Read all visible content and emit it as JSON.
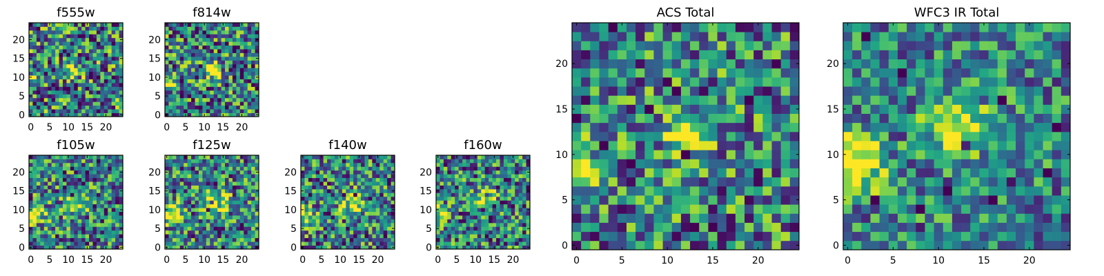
{
  "chart_data": [
    {
      "type": "heatmap",
      "id": "p_f555w",
      "title": "f555w",
      "grid": false,
      "xlim": [
        -0.5,
        24.5
      ],
      "ylim": [
        -0.5,
        24.5
      ],
      "xticks": [
        0,
        5,
        10,
        15,
        20
      ],
      "yticks": [
        0,
        5,
        10,
        15,
        20
      ],
      "x_tick_labels": [
        "0",
        "5",
        "10",
        "15",
        "20"
      ],
      "y_tick_labels": [
        "0",
        "5",
        "10",
        "15",
        "20"
      ],
      "colormap": "viridis",
      "pixels": 25,
      "seed": 11,
      "blobs": [
        {
          "cx": 12,
          "cy": 11,
          "sigma": 1.6,
          "amp": 0.55
        },
        {
          "cx": 0,
          "cy": 9,
          "sigma": 1.4,
          "amp": 0.35
        }
      ],
      "noise": 0.62
    },
    {
      "type": "heatmap",
      "id": "p_f814w",
      "title": "f814w",
      "grid": false,
      "xlim": [
        -0.5,
        24.5
      ],
      "ylim": [
        -0.5,
        24.5
      ],
      "xticks": [
        0,
        5,
        10,
        15,
        20
      ],
      "yticks": [
        0,
        5,
        10,
        15,
        20
      ],
      "x_tick_labels": [
        "0",
        "5",
        "10",
        "15",
        "20"
      ],
      "y_tick_labels": [
        "0",
        "5",
        "10",
        "15",
        "20"
      ],
      "colormap": "viridis",
      "pixels": 25,
      "seed": 23,
      "blobs": [
        {
          "cx": 12,
          "cy": 12,
          "sigma": 1.5,
          "amp": 0.65
        },
        {
          "cx": 0,
          "cy": 9,
          "sigma": 1.6,
          "amp": 0.6
        }
      ],
      "noise": 0.6
    },
    {
      "type": "heatmap",
      "id": "p_f105w",
      "title": "f105w",
      "grid": false,
      "xlim": [
        -0.5,
        24.5
      ],
      "ylim": [
        -0.5,
        24.5
      ],
      "xticks": [
        0,
        5,
        10,
        15,
        20
      ],
      "yticks": [
        0,
        5,
        10,
        15,
        20
      ],
      "x_tick_labels": [
        "0",
        "5",
        "10",
        "15",
        "20"
      ],
      "y_tick_labels": [
        "0",
        "5",
        "10",
        "15",
        "20"
      ],
      "colormap": "viridis",
      "pixels": 25,
      "seed": 37,
      "blobs": [
        {
          "cx": 12,
          "cy": 12,
          "sigma": 2.2,
          "amp": 0.4
        },
        {
          "cx": 1,
          "cy": 9,
          "sigma": 2.0,
          "amp": 0.55
        }
      ],
      "noise": 0.55
    },
    {
      "type": "heatmap",
      "id": "p_f125w",
      "title": "f125w",
      "grid": false,
      "xlim": [
        -0.5,
        24.5
      ],
      "ylim": [
        -0.5,
        24.5
      ],
      "xticks": [
        0,
        5,
        10,
        15,
        20
      ],
      "yticks": [
        0,
        5,
        10,
        15,
        20
      ],
      "x_tick_labels": [
        "0",
        "5",
        "10",
        "15",
        "20"
      ],
      "y_tick_labels": [
        "0",
        "5",
        "10",
        "15",
        "20"
      ],
      "colormap": "viridis",
      "pixels": 25,
      "seed": 41,
      "blobs": [
        {
          "cx": 13,
          "cy": 12,
          "sigma": 2.2,
          "amp": 0.45
        },
        {
          "cx": 1,
          "cy": 9,
          "sigma": 2.0,
          "amp": 0.55
        }
      ],
      "noise": 0.55
    },
    {
      "type": "heatmap",
      "id": "p_f140w",
      "title": "f140w",
      "grid": false,
      "xlim": [
        -0.5,
        24.5
      ],
      "ylim": [
        -0.5,
        24.5
      ],
      "xticks": [
        0,
        5,
        10,
        15,
        20
      ],
      "yticks": [
        0,
        5,
        10,
        15,
        20
      ],
      "x_tick_labels": [
        "0",
        "5",
        "10",
        "15",
        "20"
      ],
      "y_tick_labels": [
        "0",
        "5",
        "10",
        "15",
        "20"
      ],
      "colormap": "viridis",
      "pixels": 25,
      "seed": 53,
      "blobs": [
        {
          "cx": 13,
          "cy": 12,
          "sigma": 2.3,
          "amp": 0.45
        },
        {
          "cx": 1,
          "cy": 8,
          "sigma": 1.8,
          "amp": 0.5
        }
      ],
      "noise": 0.55
    },
    {
      "type": "heatmap",
      "id": "p_f160w",
      "title": "f160w",
      "grid": false,
      "xlim": [
        -0.5,
        24.5
      ],
      "ylim": [
        -0.5,
        24.5
      ],
      "xticks": [
        0,
        5,
        10,
        15,
        20
      ],
      "yticks": [
        0,
        5,
        10,
        15,
        20
      ],
      "x_tick_labels": [
        "0",
        "5",
        "10",
        "15",
        "20"
      ],
      "y_tick_labels": [
        "0",
        "5",
        "10",
        "15",
        "20"
      ],
      "colormap": "viridis",
      "pixels": 25,
      "seed": 67,
      "blobs": [
        {
          "cx": 13,
          "cy": 13,
          "sigma": 1.8,
          "amp": 0.55
        },
        {
          "cx": 0,
          "cy": 9,
          "sigma": 1.5,
          "amp": 0.55
        }
      ],
      "noise": 0.55
    },
    {
      "type": "heatmap",
      "id": "p_acs",
      "title": "ACS Total",
      "grid": false,
      "xlim": [
        -0.5,
        24.5
      ],
      "ylim": [
        -0.5,
        24.5
      ],
      "xticks": [
        0,
        5,
        10,
        15,
        20
      ],
      "yticks": [
        0,
        5,
        10,
        15,
        20
      ],
      "x_tick_labels": [
        "0",
        "5",
        "10",
        "15",
        "20"
      ],
      "y_tick_labels": [
        "0",
        "5",
        "10",
        "15",
        "20"
      ],
      "colormap": "viridis",
      "pixels": 25,
      "seed": 79,
      "blobs": [
        {
          "cx": 12,
          "cy": 12,
          "sigma": 1.5,
          "amp": 0.7
        },
        {
          "cx": 0,
          "cy": 9,
          "sigma": 1.4,
          "amp": 0.7
        }
      ],
      "noise": 0.55
    },
    {
      "type": "heatmap",
      "id": "p_wfc3",
      "title": "WFC3 IR Total",
      "grid": false,
      "xlim": [
        -0.5,
        24.5
      ],
      "ylim": [
        -0.5,
        24.5
      ],
      "xticks": [
        0,
        5,
        10,
        15,
        20
      ],
      "yticks": [
        0,
        5,
        10,
        15,
        20
      ],
      "x_tick_labels": [
        "0",
        "5",
        "10",
        "15",
        "20"
      ],
      "y_tick_labels": [
        "0",
        "5",
        "10",
        "15",
        "20"
      ],
      "colormap": "viridis",
      "pixels": 25,
      "seed": 97,
      "blobs": [
        {
          "cx": 12,
          "cy": 13,
          "sigma": 2.2,
          "amp": 0.65
        },
        {
          "cx": 1,
          "cy": 9,
          "sigma": 2.0,
          "amp": 0.75
        }
      ],
      "noise": 0.45
    }
  ]
}
